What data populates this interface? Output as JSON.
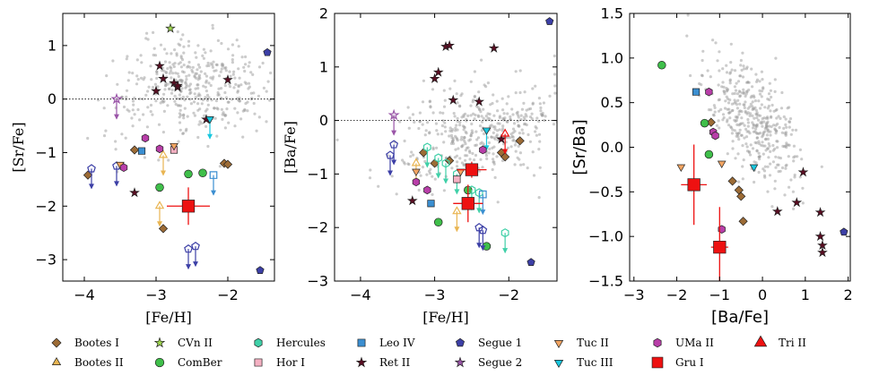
{
  "chart_data": [
    {
      "type": "scatter",
      "xlabel": "[Fe/H]",
      "ylabel": "[Sr/Fe]",
      "xlim": [
        -4.3,
        -1.35
      ],
      "ylim": [
        -3.4,
        1.6
      ],
      "xticks": [
        -4,
        -3,
        -2
      ],
      "yticks": [
        -3,
        -2,
        -1,
        0,
        1
      ],
      "xtick_labels": [
        "−4",
        "−3",
        "−2"
      ],
      "ytick_labels": [
        "−3",
        "−2",
        "−1",
        "0",
        "1"
      ],
      "solar_line": 0,
      "series": [
        {
          "name": "Bootes I",
          "x": [
            -3.3,
            -2.05,
            -2.0,
            -2.9,
            -3.95
          ],
          "y": [
            -0.95,
            -1.2,
            -1.22,
            -2.42,
            -1.42
          ]
        },
        {
          "name": "Bootes II",
          "x": [
            -2.9,
            -2.95
          ],
          "y": [
            -1.05,
            -2.0
          ],
          "upper_limit": true
        },
        {
          "name": "CVn II",
          "x": [
            -2.8
          ],
          "y": [
            1.32
          ]
        },
        {
          "name": "ComBer",
          "x": [
            -2.95,
            -2.55,
            -2.35
          ],
          "y": [
            -1.65,
            -1.4,
            -1.38
          ]
        },
        {
          "name": "Hercules",
          "x": [],
          "y": []
        },
        {
          "name": "Hor I",
          "x": [
            -2.75
          ],
          "y": [
            -0.95
          ]
        },
        {
          "name": "Leo IV",
          "x": [
            -3.2,
            -2.2
          ],
          "y": [
            -0.97,
            -1.42
          ],
          "upper_limit": [
            false,
            true
          ]
        },
        {
          "name": "Ret II",
          "x": [
            -2.95,
            -2.9,
            -2.75,
            -2.7,
            -2.7,
            -3.0,
            -2.3,
            -2.0,
            -3.3
          ],
          "y": [
            0.62,
            0.38,
            0.3,
            0.22,
            0.25,
            0.15,
            -0.38,
            0.36,
            -1.75
          ]
        },
        {
          "name": "Segue 1",
          "x": [
            -1.45,
            -3.9,
            -3.55,
            -2.55,
            -2.45,
            -1.55
          ],
          "y": [
            0.87,
            -1.3,
            -1.25,
            -2.8,
            -2.75,
            -3.2
          ],
          "upper_limit": [
            false,
            true,
            true,
            true,
            true,
            false
          ]
        },
        {
          "name": "Segue 2",
          "x": [
            -3.55
          ],
          "y": [
            0.0
          ],
          "upper_limit": true
        },
        {
          "name": "Tuc II",
          "x": [
            -3.5,
            -2.75
          ],
          "y": [
            -1.22,
            -0.87
          ]
        },
        {
          "name": "Tuc III",
          "x": [
            -2.25
          ],
          "y": [
            -0.37
          ],
          "upper_limit": true
        },
        {
          "name": "UMa II",
          "x": [
            -3.15,
            -2.95,
            -3.45
          ],
          "y": [
            -0.73,
            -0.93,
            -1.28
          ]
        },
        {
          "name": "Gru I",
          "x": [
            -2.55
          ],
          "y": [
            -2.0
          ],
          "xerr": 0.3,
          "yerr": 0.35
        },
        {
          "name": "Tri II",
          "x": [],
          "y": []
        }
      ]
    },
    {
      "type": "scatter",
      "xlabel": "[Fe/H]",
      "ylabel": "[Ba/Fe]",
      "xlim": [
        -4.35,
        -1.35
      ],
      "ylim": [
        -3.0,
        2.0
      ],
      "xticks": [
        -4,
        -3,
        -2
      ],
      "yticks": [
        -3,
        -2,
        -1,
        0,
        1,
        2
      ],
      "xtick_labels": [
        "−4",
        "−3",
        "−2"
      ],
      "ytick_labels": [
        "−3",
        "−2",
        "−1",
        "0",
        "1",
        "2"
      ],
      "solar_line": 0,
      "series": [
        {
          "name": "Bootes I",
          "x": [
            -3.15,
            -2.8,
            -2.1,
            -2.05,
            -1.85,
            -3.0
          ],
          "y": [
            -0.6,
            -0.75,
            -0.6,
            -0.68,
            -0.38,
            -0.8
          ]
        },
        {
          "name": "Bootes II",
          "x": [
            -3.25,
            -2.7
          ],
          "y": [
            -0.8,
            -1.7
          ],
          "upper_limit": true
        },
        {
          "name": "CVn II",
          "x": [],
          "y": []
        },
        {
          "name": "ComBer",
          "x": [
            -2.55,
            -2.3,
            -2.95
          ],
          "y": [
            -1.3,
            -2.35,
            -1.9
          ]
        },
        {
          "name": "Hercules",
          "x": [
            -3.1,
            -2.95,
            -2.85,
            -2.7,
            -2.5,
            -2.4,
            -2.05
          ],
          "y": [
            -0.5,
            -0.7,
            -0.8,
            -1.0,
            -1.3,
            -1.35,
            -2.1
          ],
          "upper_limit": true
        },
        {
          "name": "Hor I",
          "x": [
            -2.7
          ],
          "y": [
            -1.1
          ]
        },
        {
          "name": "Leo IV",
          "x": [
            -3.05,
            -2.35
          ],
          "y": [
            -1.55,
            -1.38
          ],
          "upper_limit": [
            false,
            true
          ]
        },
        {
          "name": "Ret II",
          "x": [
            -3.0,
            -2.95,
            -2.85,
            -2.8,
            -2.75,
            -2.4,
            -2.2,
            -2.1,
            -3.3
          ],
          "y": [
            0.78,
            0.9,
            1.38,
            1.4,
            0.38,
            0.35,
            1.35,
            -0.35,
            -1.5
          ]
        },
        {
          "name": "Segue 1",
          "x": [
            -1.45,
            -3.6,
            -3.55,
            -2.4,
            -2.35,
            -1.7
          ],
          "y": [
            1.85,
            -0.65,
            -0.45,
            -2.0,
            -2.05,
            -2.65
          ],
          "upper_limit": [
            false,
            true,
            true,
            true,
            true,
            false
          ]
        },
        {
          "name": "Segue 2",
          "x": [
            -3.55
          ],
          "y": [
            0.1
          ],
          "upper_limit": true
        },
        {
          "name": "Tuc II",
          "x": [
            -3.25,
            -2.65
          ],
          "y": [
            -0.95,
            -0.95
          ]
        },
        {
          "name": "Tuc III",
          "x": [
            -2.3
          ],
          "y": [
            -0.18
          ],
          "upper_limit": true
        },
        {
          "name": "UMa II",
          "x": [
            -3.25,
            -3.1,
            -2.35
          ],
          "y": [
            -1.15,
            -1.3,
            -0.55
          ]
        },
        {
          "name": "Gru I",
          "x": [
            -2.55,
            -2.5
          ],
          "y": [
            -1.55,
            -0.92
          ],
          "xerr": 0.2,
          "yerr": [
            0.35,
            0.15
          ]
        },
        {
          "name": "Tri II",
          "x": [
            -2.05
          ],
          "y": [
            -0.25
          ],
          "upper_limit": true
        }
      ]
    },
    {
      "type": "scatter",
      "xlabel": "[Ba/Fe]",
      "ylabel": "[Sr/Ba]",
      "xlim": [
        -3.1,
        2.05
      ],
      "ylim": [
        -1.5,
        1.5
      ],
      "xticks": [
        -3,
        -2,
        -1,
        0,
        1,
        2
      ],
      "yticks": [
        -1.5,
        -1.0,
        -0.5,
        0.0,
        0.5,
        1.0,
        1.5
      ],
      "xtick_labels": [
        "−3",
        "−2",
        "−1",
        "0",
        "1",
        "2"
      ],
      "ytick_labels": [
        "−1.5",
        "−1.0",
        "−0.5",
        "0.0",
        "0.5",
        "1.0",
        "1.5"
      ],
      "series": [
        {
          "name": "Bootes I",
          "x": [
            -1.2,
            -0.7,
            -0.55,
            -0.5,
            -0.45
          ],
          "y": [
            0.28,
            -0.38,
            -0.48,
            -0.55,
            -0.83
          ]
        },
        {
          "name": "Bootes II",
          "x": [],
          "y": []
        },
        {
          "name": "CVn II",
          "x": [],
          "y": []
        },
        {
          "name": "ComBer",
          "x": [
            -2.35,
            -1.35,
            -1.25
          ],
          "y": [
            0.92,
            0.27,
            -0.08
          ]
        },
        {
          "name": "Hercules",
          "x": [],
          "y": []
        },
        {
          "name": "Hor I",
          "x": [],
          "y": []
        },
        {
          "name": "Leo IV",
          "x": [
            -1.55
          ],
          "y": [
            0.62
          ]
        },
        {
          "name": "Ret II",
          "x": [
            0.35,
            0.8,
            0.95,
            1.35,
            1.35,
            1.4,
            1.4
          ],
          "y": [
            -0.72,
            -0.62,
            -0.28,
            -0.73,
            -1.0,
            -1.1,
            -1.18
          ]
        },
        {
          "name": "Segue 1",
          "x": [
            1.9
          ],
          "y": [
            -0.95
          ]
        },
        {
          "name": "Segue 2",
          "x": [],
          "y": []
        },
        {
          "name": "Tuc II",
          "x": [
            -1.9,
            -0.95
          ],
          "y": [
            -0.22,
            -0.18
          ]
        },
        {
          "name": "Tuc III",
          "x": [
            -0.2
          ],
          "y": [
            -0.22
          ]
        },
        {
          "name": "UMa II",
          "x": [
            -1.25,
            -1.15,
            -1.1,
            -0.95
          ],
          "y": [
            0.62,
            0.17,
            0.13,
            -0.92
          ]
        },
        {
          "name": "Gru I",
          "x": [
            -1.6,
            -1.0
          ],
          "y": [
            -0.42,
            -1.12
          ],
          "xerr": [
            0.3,
            0.2
          ],
          "yerr": [
            0.45,
            0.45
          ]
        },
        {
          "name": "Tri II",
          "x": [],
          "y": []
        }
      ]
    }
  ],
  "legend": [
    {
      "label": "Bootes I",
      "marker": "diamond",
      "color": "#9c6b35"
    },
    {
      "label": "Bootes II",
      "marker": "triangle-up",
      "color": "#e9b552"
    },
    {
      "label": "CVn II",
      "marker": "star",
      "color": "#9ed64e"
    },
    {
      "label": "ComBer",
      "marker": "circle",
      "color": "#3fbf4a"
    },
    {
      "label": "Hercules",
      "marker": "hexagon",
      "color": "#3fd0a8"
    },
    {
      "label": "Hor I",
      "marker": "square",
      "color": "#f5b1c3"
    },
    {
      "label": "Leo IV",
      "marker": "square",
      "color": "#3b8fd1"
    },
    {
      "label": "Ret II",
      "marker": "star",
      "color": "#5a0d22"
    },
    {
      "label": "Segue 1",
      "marker": "pentagon",
      "color": "#3c3fa6"
    },
    {
      "label": "Segue 2",
      "marker": "star",
      "color": "#9a55a8"
    },
    {
      "label": "Tuc II",
      "marker": "triangle-down",
      "color": "#f3a562"
    },
    {
      "label": "Tuc III",
      "marker": "triangle-down",
      "color": "#19c7df"
    },
    {
      "label": "UMa II",
      "marker": "hexagon",
      "color": "#b83ea8"
    },
    {
      "label": "Gru I",
      "marker": "square",
      "color": "#ee1111"
    },
    {
      "label": "Tri II",
      "marker": "triangle-up",
      "color": "#ee1111"
    }
  ]
}
